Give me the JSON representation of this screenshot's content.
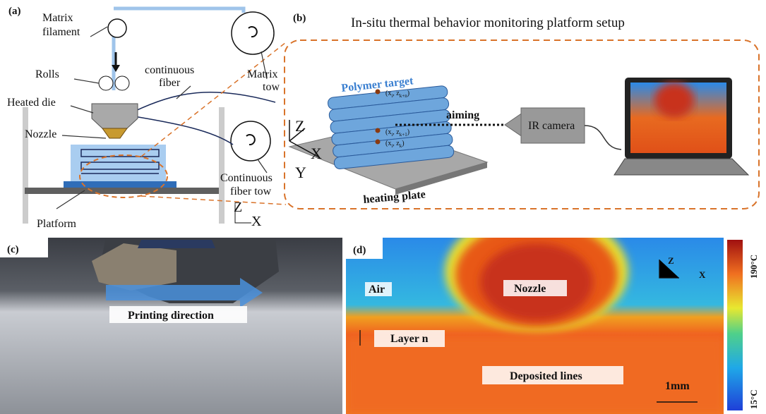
{
  "panel_a": {
    "label": "(a)",
    "matrix_filament": [
      "Matrix",
      "filament"
    ],
    "rolls": "Rolls",
    "continuous_fiber": [
      "continuous",
      "fiber"
    ],
    "heated_die": "Heated die",
    "nozzle": "Nozzle",
    "matrix_tow": [
      "Matrix",
      "tow"
    ],
    "continuous_fiber_tow": [
      "Continuous",
      "fiber tow"
    ],
    "platform": "Platform",
    "axis_z": "Z",
    "axis_x": "X"
  },
  "panel_b": {
    "label": "(b)",
    "title": "In-situ thermal behavior monitoring platform setup",
    "polymer_target": "Polymer target",
    "points": [
      {
        "open": "(x",
        "x_sub": "i",
        "sep": ",  z",
        "z_sub": "k+n",
        "close": ")"
      },
      {
        "open": "(x",
        "x_sub": "i",
        "sep": ",  z",
        "z_sub": "k+1",
        "close": ")"
      },
      {
        "open": "(x",
        "x_sub": "i",
        "sep": ",  z",
        "z_sub": "k",
        "close": ")"
      }
    ],
    "aiming": "aiming",
    "ir_camera": "IR camera",
    "axis_z": "Z",
    "axis_x": "X",
    "axis_y": "Y",
    "heating_plate": "heating plate"
  },
  "panel_c": {
    "label": "(c)",
    "printing_direction": "Printing direction"
  },
  "panel_d": {
    "label": "(d)",
    "air": "Air",
    "nozzle": "Nozzle",
    "layer_n": "Layer n",
    "deposited_lines": "Deposited lines",
    "axis_z": "Z",
    "axis_x": "X",
    "scale_bar": "1mm",
    "colorbar_max": "190°C",
    "colorbar_min": "15°C"
  }
}
